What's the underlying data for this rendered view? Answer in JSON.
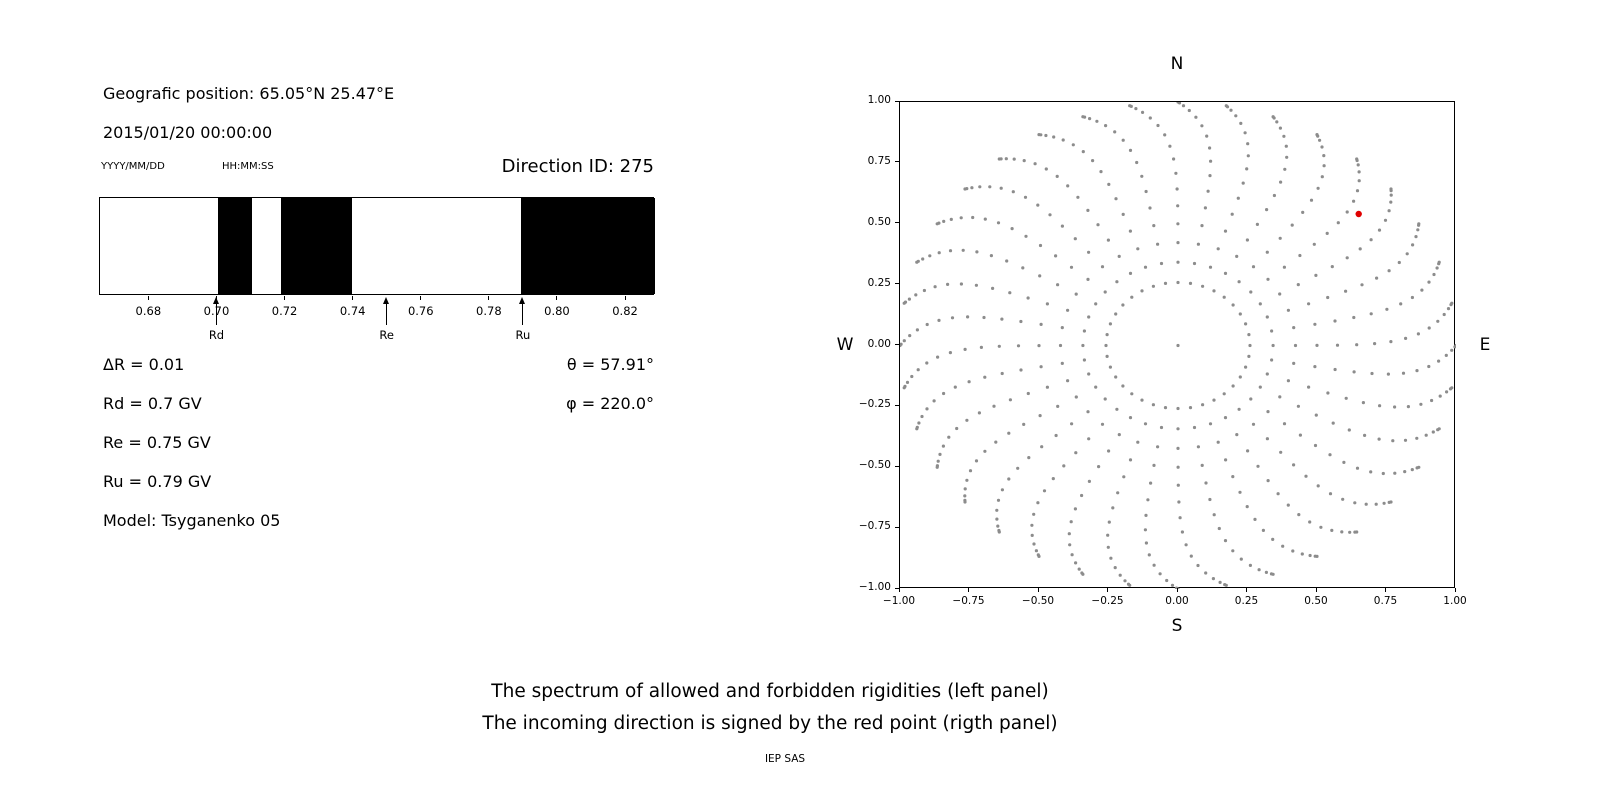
{
  "colors": {
    "background": "#ffffff",
    "text": "#000000",
    "band": "#000000",
    "axis": "#000000",
    "dot": "#8c8c8c",
    "red_point": "#e00000"
  },
  "header": {
    "position": "Geografic position: 65.05°N 25.47°E",
    "datetime": "2015/01/20 00:00:00",
    "date_format_hint": "YYYY/MM/DD",
    "time_format_hint": "HH:MM:SS",
    "direction_id": "Direction ID: 275"
  },
  "parameters": {
    "delta_r": "ΔR = 0.01",
    "rd": "Rd = 0.7 GV",
    "re": "Re = 0.75 GV",
    "ru": "Ru = 0.79 GV",
    "model": "Model: Tsyganenko 05",
    "theta": "θ = 57.91°",
    "phi": "φ = 220.0°"
  },
  "captions": {
    "line1": "The spectrum of allowed and forbidden rigidities (left panel)",
    "line2": "The incoming direction is signed by the red point (rigth panel)",
    "credit": "IEP SAS"
  },
  "chart_data": [
    {
      "type": "bar",
      "description": "Spectrum of allowed (black) and forbidden (white) rigidities in GV",
      "xlim": [
        0.6655,
        0.8285
      ],
      "xticks": [
        0.68,
        0.7,
        0.72,
        0.74,
        0.76,
        0.78,
        0.8,
        0.82
      ],
      "allowed_bands_gv": [
        [
          0.7,
          0.71
        ],
        [
          0.7185,
          0.7395
        ],
        [
          0.789,
          0.8285
        ]
      ],
      "markers": [
        {
          "label": "Rd",
          "value_gv": 0.7
        },
        {
          "label": "Re",
          "value_gv": 0.75
        },
        {
          "label": "Ru",
          "value_gv": 0.79
        }
      ],
      "delta_r_gv": 0.01,
      "rd_gv": 0.7,
      "re_gv": 0.75,
      "ru_gv": 0.79,
      "model": "Tsyganenko 05"
    },
    {
      "type": "scatter",
      "description": "Grid of incoming directions; red point marks the selected direction",
      "xlim": [
        -1.0,
        1.0
      ],
      "ylim": [
        -1.0,
        1.0
      ],
      "xticks": [
        -1.0,
        -0.75,
        -0.5,
        -0.25,
        0.0,
        0.25,
        0.5,
        0.75,
        1.0
      ],
      "yticks": [
        -1.0,
        -0.75,
        -0.5,
        -0.25,
        0.0,
        0.25,
        0.5,
        0.75,
        1.0
      ],
      "compass_labels": {
        "top": "N",
        "bottom": "S",
        "left": "W",
        "right": "E"
      },
      "direction_grid": {
        "azimuth_count": 36,
        "zenith_start_deg": 15,
        "zenith_end_deg": 90,
        "zenith_step_deg": 5,
        "radius_rule": "sin(zenith)",
        "twist_deg_max": 10,
        "twist_power": 8,
        "center_dot": true
      },
      "red_point": {
        "x": 0.65,
        "y": 0.54,
        "theta_deg": 57.91,
        "phi_deg": 220.0
      },
      "dot_color": "#8c8c8c",
      "red_color": "#e00000",
      "grid": false,
      "legend": "none"
    }
  ]
}
